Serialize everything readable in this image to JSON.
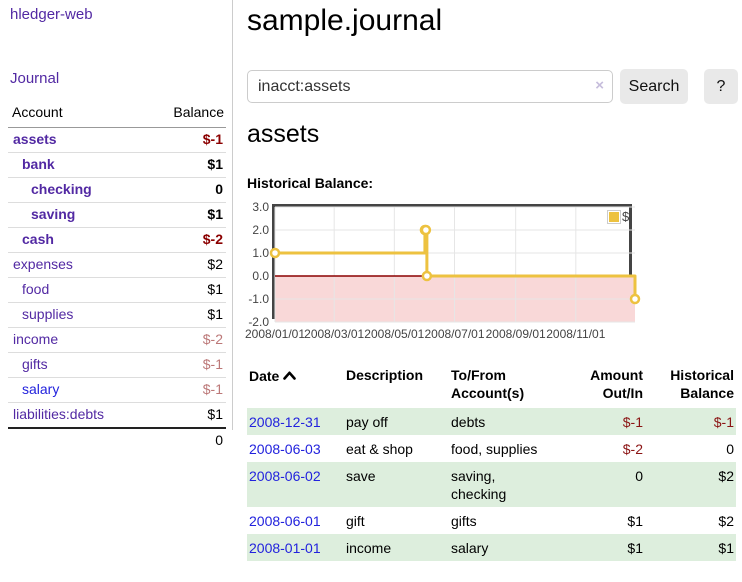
{
  "app": {
    "brand": "hledger-web",
    "journal_link": "Journal"
  },
  "sidebar": {
    "header_account": "Account",
    "header_balance": "Balance",
    "rows": [
      {
        "name": "assets",
        "balance": "$-1"
      },
      {
        "name": "bank",
        "balance": "$1"
      },
      {
        "name": "checking",
        "balance": "0"
      },
      {
        "name": "saving",
        "balance": "$1"
      },
      {
        "name": "cash",
        "balance": "$-2"
      },
      {
        "name": "expenses",
        "balance": "$2"
      },
      {
        "name": "food",
        "balance": "$1"
      },
      {
        "name": "supplies",
        "balance": "$1"
      },
      {
        "name": "income",
        "balance": "$-2"
      },
      {
        "name": "gifts",
        "balance": "$-1"
      },
      {
        "name": "salary",
        "balance": "$-1"
      },
      {
        "name": "liabilities:debts",
        "balance": "$1"
      }
    ],
    "total": "0"
  },
  "header": {
    "title": "sample.journal"
  },
  "search": {
    "value": "inacct:assets",
    "clear_icon": "×",
    "button_label": "Search",
    "help_label": "?"
  },
  "account_view": {
    "heading": "assets",
    "chart_title": "Historical Balance:"
  },
  "chart_data": {
    "type": "line",
    "subtype": "step-after",
    "title": "Historical Balance",
    "series": [
      {
        "name": "$",
        "color": "#edc240",
        "points": [
          [
            "2008-01-01",
            1
          ],
          [
            "2008-06-01",
            2
          ],
          [
            "2008-06-02",
            2
          ],
          [
            "2008-06-03",
            0
          ],
          [
            "2008-12-31",
            -1
          ]
        ]
      }
    ],
    "xmin": "2008-01-01",
    "xmax": "2008-12-31",
    "ymin": -2,
    "ymax": 3,
    "ytick_values": [
      3,
      2,
      1,
      0,
      -1,
      -2
    ],
    "ytick_labels": [
      "3.0",
      "2.0",
      "1.0",
      "0.0",
      "-1.0",
      "-2.0"
    ],
    "xticks": [
      {
        "label": "2008/01/01",
        "date": "2008-01-01"
      },
      {
        "label": "2008/03/01",
        "date": "2008-03-01"
      },
      {
        "label": "2008/05/01",
        "date": "2008-05-01"
      },
      {
        "label": "2008/07/01",
        "date": "2008-07-01"
      },
      {
        "label": "2008/09/01",
        "date": "2008-09-01"
      },
      {
        "label": "2008/11/01",
        "date": "2008-11-01"
      }
    ],
    "legend_position": "top-right",
    "grid": true,
    "gridline_color": "#e6e6e6",
    "zero_line_color": "#8b0000",
    "negative_region_color": "#f9d8d8",
    "plot_border_color": "#444"
  },
  "register": {
    "sort_icon": "ascending",
    "headers": {
      "date": "Date",
      "description": "Description",
      "accounts": "To/From Account(s)",
      "amount": "Amount Out/In",
      "balance": "Historical Balance"
    },
    "rows": [
      {
        "date": "2008-12-31",
        "description": "pay off",
        "accounts": "debts",
        "amount": "$-1",
        "balance": "$-1"
      },
      {
        "date": "2008-06-03",
        "description": "eat & shop",
        "accounts": "food, supplies",
        "amount": "$-2",
        "balance": "0"
      },
      {
        "date": "2008-06-02",
        "description": "save",
        "accounts": "saving, checking",
        "amount": "0",
        "balance": "$2"
      },
      {
        "date": "2008-06-01",
        "description": "gift",
        "accounts": "gifts",
        "amount": "$1",
        "balance": "$2"
      },
      {
        "date": "2008-01-01",
        "description": "income",
        "accounts": "salary",
        "amount": "$1",
        "balance": "$1"
      }
    ]
  }
}
